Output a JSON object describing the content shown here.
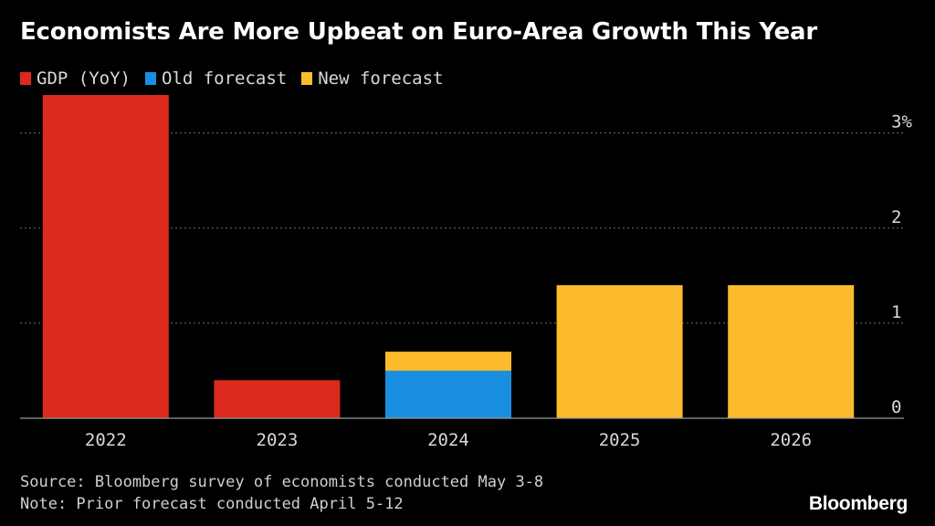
{
  "chart_data": {
    "type": "bar",
    "stacked": true,
    "title": "Economists Are More Upbeat on Euro-Area Growth This Year",
    "categories": [
      "2022",
      "2023",
      "2024",
      "2025",
      "2026"
    ],
    "series": [
      {
        "name": "GDP (YoY)",
        "color": "#dc2a1e",
        "values": [
          3.4,
          0.4,
          null,
          null,
          null
        ]
      },
      {
        "name": "Old forecast",
        "color": "#1a8fe0",
        "values": [
          null,
          null,
          0.5,
          null,
          null
        ]
      },
      {
        "name": "New forecast",
        "color": "#fbbb2d",
        "values": [
          null,
          null,
          0.2,
          1.4,
          1.4
        ]
      }
    ],
    "y_ticks": [
      "0",
      "1",
      "2",
      "3%"
    ],
    "ylim": [
      0,
      3.4
    ],
    "legend_position": "top-left",
    "grid": "dotted horizontal",
    "y_axis_side": "right"
  },
  "source_note": "Source: Bloomberg survey of economists conducted May 3-8",
  "footnote": "Note: Prior forecast conducted April 5-12",
  "brand": "Bloomberg"
}
